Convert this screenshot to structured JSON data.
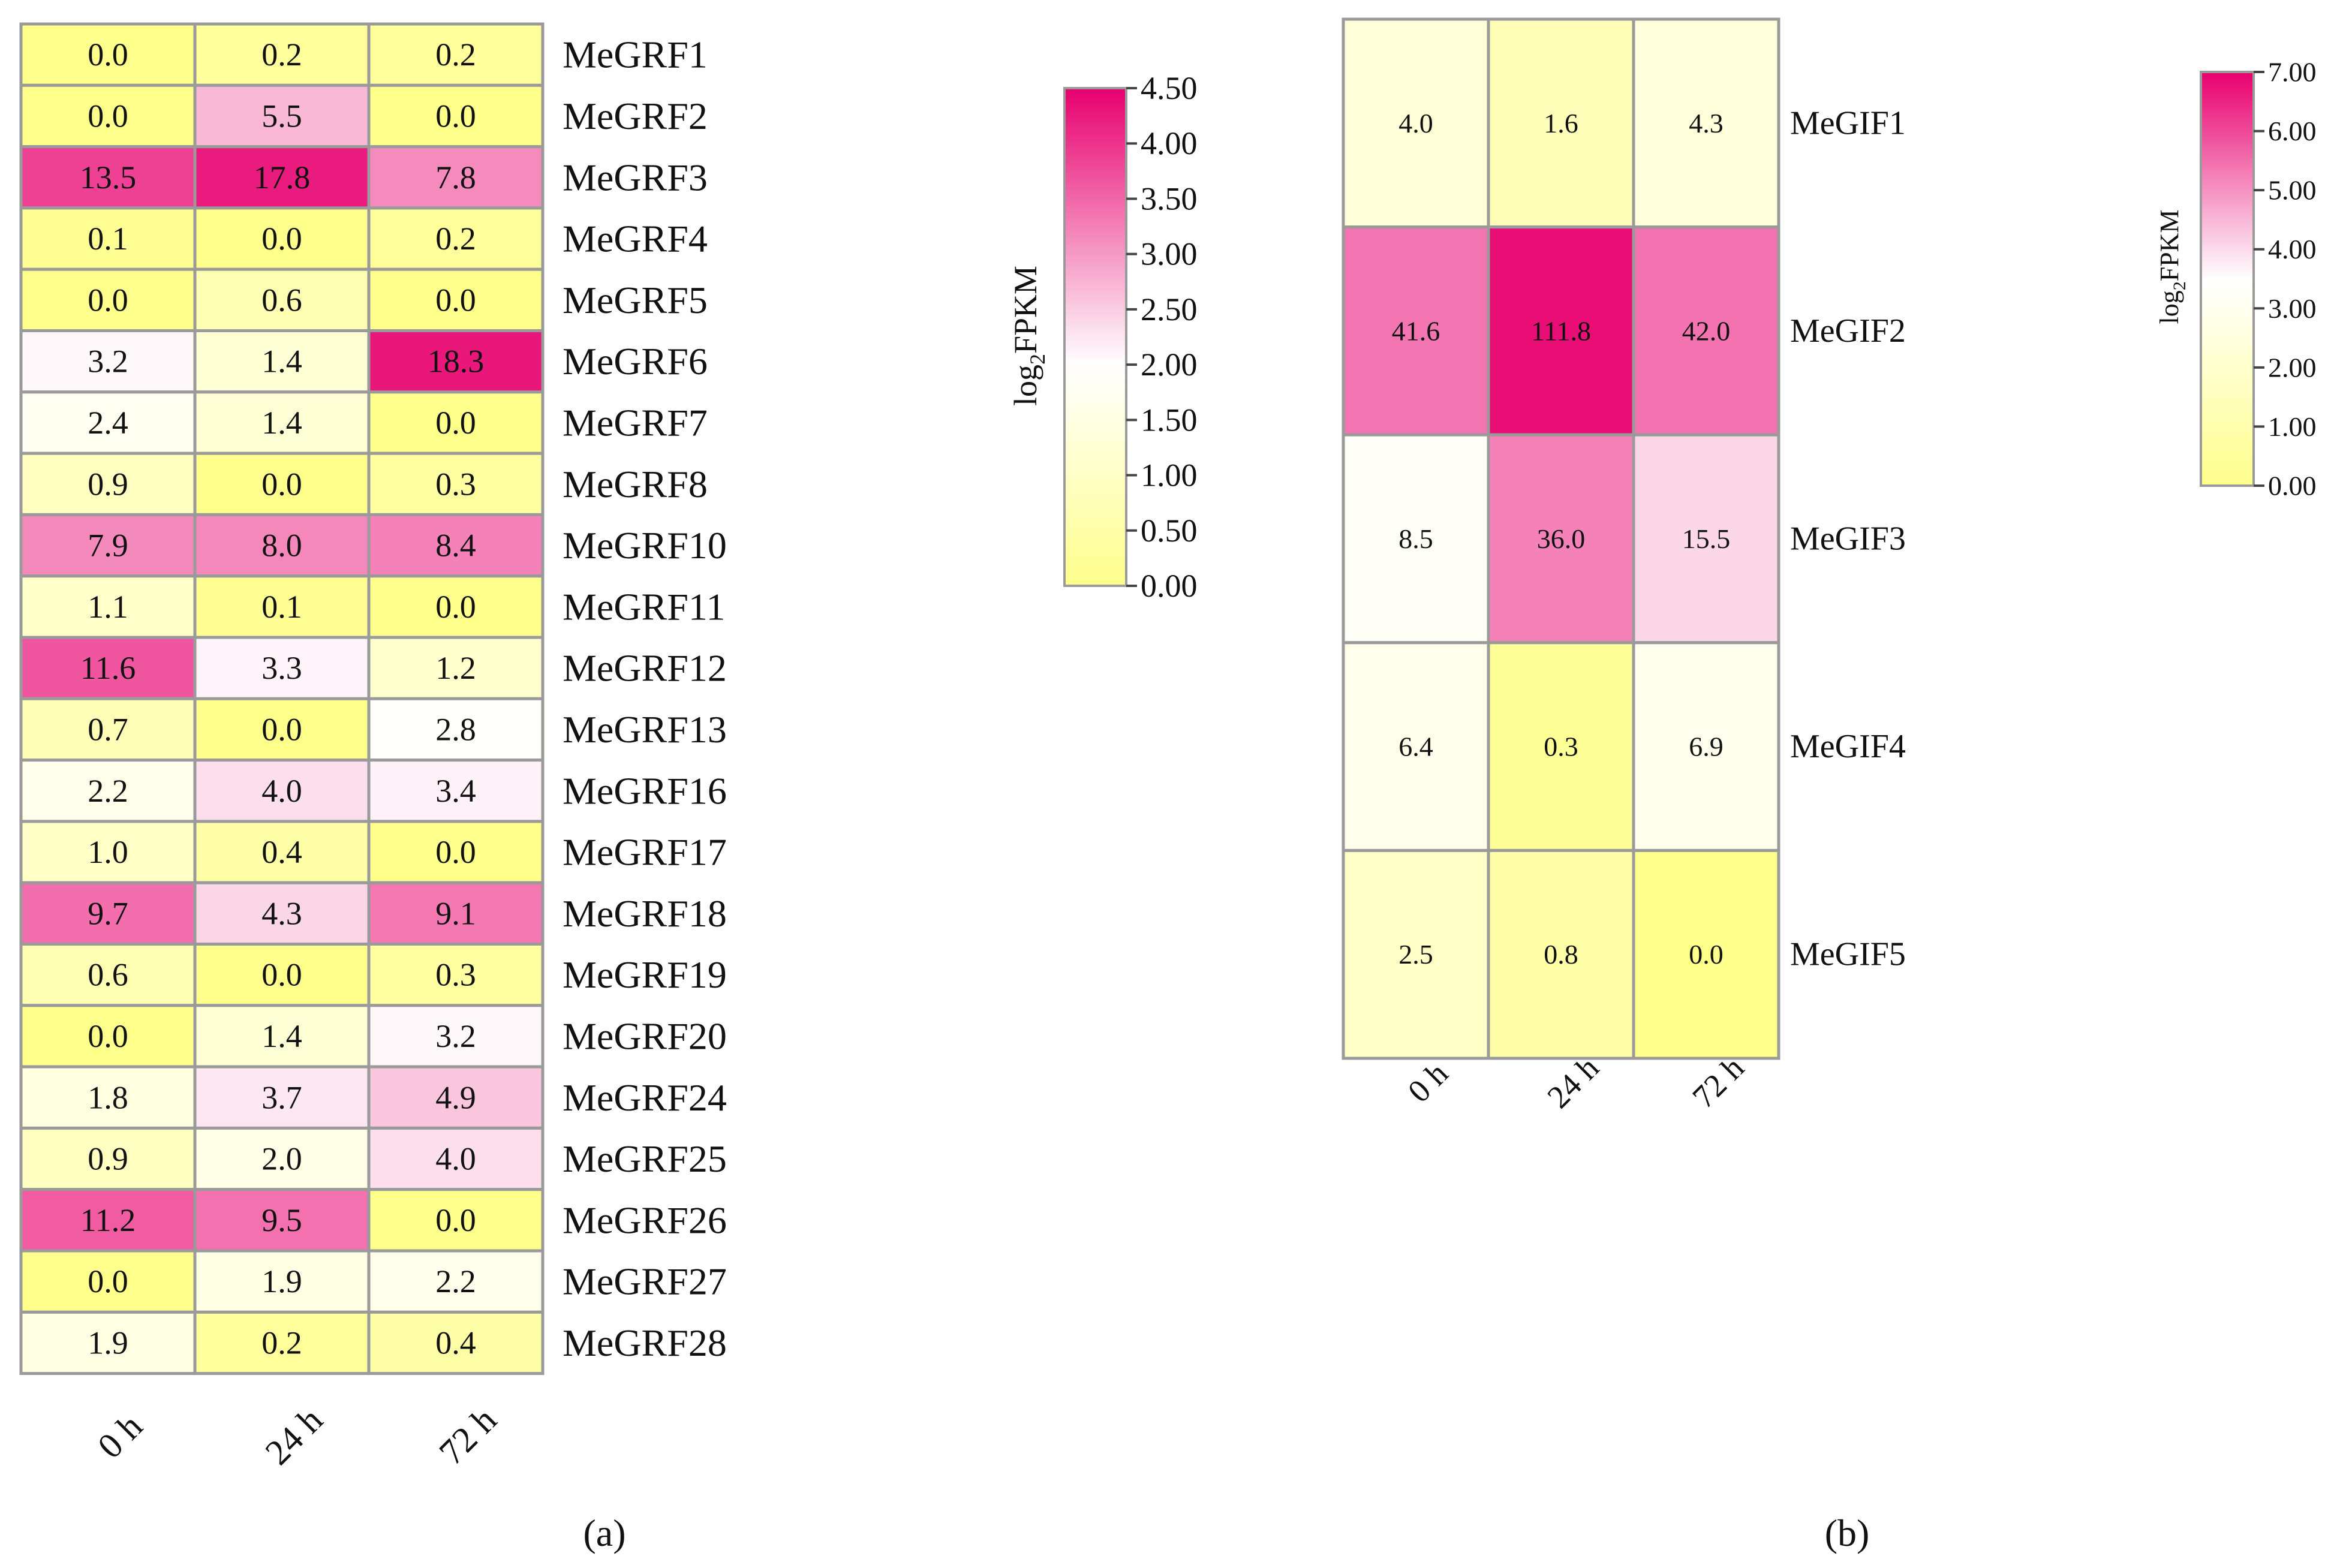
{
  "chart_data": [
    {
      "type": "heatmap",
      "panel_label": "(a)",
      "columns": [
        "0 h",
        "24 h",
        "72 h"
      ],
      "rows": [
        "MeGRF1",
        "MeGRF2",
        "MeGRF3",
        "MeGRF4",
        "MeGRF5",
        "MeGRF6",
        "MeGRF7",
        "MeGRF8",
        "MeGRF10",
        "MeGRF11",
        "MeGRF12",
        "MeGRF13",
        "MeGRF16",
        "MeGRF17",
        "MeGRF18",
        "MeGRF19",
        "MeGRF20",
        "MeGRF24",
        "MeGRF25",
        "MeGRF26",
        "MeGRF27",
        "MeGRF28"
      ],
      "values": [
        [
          "0.0",
          "0.2",
          "0.2"
        ],
        [
          "0.0",
          "5.5",
          "0.0"
        ],
        [
          "13.5",
          "17.8",
          "7.8"
        ],
        [
          "0.1",
          "0.0",
          "0.2"
        ],
        [
          "0.0",
          "0.6",
          "0.0"
        ],
        [
          "3.2",
          "1.4",
          "18.3"
        ],
        [
          "2.4",
          "1.4",
          "0.0"
        ],
        [
          "0.9",
          "0.0",
          "0.3"
        ],
        [
          "7.9",
          "8.0",
          "8.4"
        ],
        [
          "1.1",
          "0.1",
          "0.0"
        ],
        [
          "11.6",
          "3.3",
          "1.2"
        ],
        [
          "0.7",
          "0.0",
          "2.8"
        ],
        [
          "2.2",
          "4.0",
          "3.4"
        ],
        [
          "1.0",
          "0.4",
          "0.0"
        ],
        [
          "9.7",
          "4.3",
          "9.1"
        ],
        [
          "0.6",
          "0.0",
          "0.3"
        ],
        [
          "0.0",
          "1.4",
          "3.2"
        ],
        [
          "1.8",
          "3.7",
          "4.9"
        ],
        [
          "0.9",
          "2.0",
          "4.0"
        ],
        [
          "11.2",
          "9.5",
          "0.0"
        ],
        [
          "0.0",
          "1.9",
          "2.2"
        ],
        [
          "1.9",
          "0.2",
          "0.4"
        ]
      ],
      "colorbar": {
        "label_main": "log",
        "label_sub": "2",
        "label_tail": "FPKM",
        "min": 0,
        "max": 4.5,
        "ticks": [
          "0.00",
          "0.50",
          "1.00",
          "1.50",
          "2.00",
          "2.50",
          "3.00",
          "3.50",
          "4.00",
          "4.50"
        ],
        "center": 2.0
      }
    },
    {
      "type": "heatmap",
      "panel_label": "(b)",
      "columns": [
        "0 h",
        "24 h",
        "72 h"
      ],
      "rows": [
        "MeGIF1",
        "MeGIF2",
        "MeGIF3",
        "MeGIF4",
        "MeGIF5"
      ],
      "values": [
        [
          "4.0",
          "1.6",
          "4.3"
        ],
        [
          "41.6",
          "111.8",
          "42.0"
        ],
        [
          "8.5",
          "36.0",
          "15.5"
        ],
        [
          "6.4",
          "0.3",
          "6.9"
        ],
        [
          "2.5",
          "0.8",
          "0.0"
        ]
      ],
      "colorbar": {
        "label_main": "log",
        "label_sub": "2",
        "label_tail": "FPKM",
        "min": 0,
        "max": 7.0,
        "ticks": [
          "0.00",
          "1.00",
          "2.00",
          "3.00",
          "4.00",
          "5.00",
          "6.00",
          "7.00"
        ],
        "center": 3.5
      }
    }
  ],
  "colors": {
    "low": "#ffff8c",
    "mid": "#ffffff",
    "high": "#e8006e",
    "grid": "#9a9a9a"
  }
}
